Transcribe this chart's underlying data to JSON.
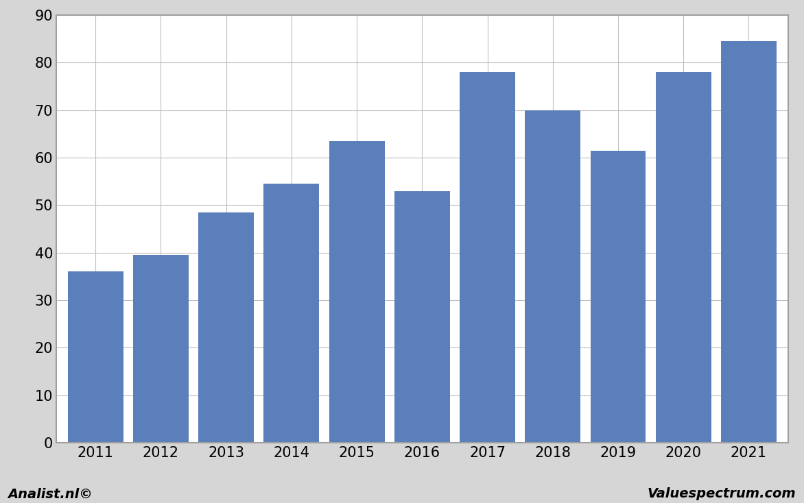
{
  "years": [
    2011,
    2012,
    2013,
    2014,
    2015,
    2016,
    2017,
    2018,
    2019,
    2020,
    2021
  ],
  "values": [
    36,
    39.5,
    48.5,
    54.5,
    63.5,
    53,
    78,
    70,
    61.5,
    78,
    84.5
  ],
  "bar_color": "#5b7fbb",
  "background_color": "#d6d6d6",
  "plot_background": "#ffffff",
  "ylim": [
    0,
    90
  ],
  "yticks": [
    0,
    10,
    20,
    30,
    40,
    50,
    60,
    70,
    80,
    90
  ],
  "footer_left": "Analist.nl©",
  "footer_right": "Valuespectrum.com",
  "footer_fontsize": 14,
  "grid_color": "#c0c0c0",
  "tick_fontsize": 15,
  "bar_width": 0.85,
  "border_color": "#a0a0a0",
  "border_linewidth": 1.5
}
